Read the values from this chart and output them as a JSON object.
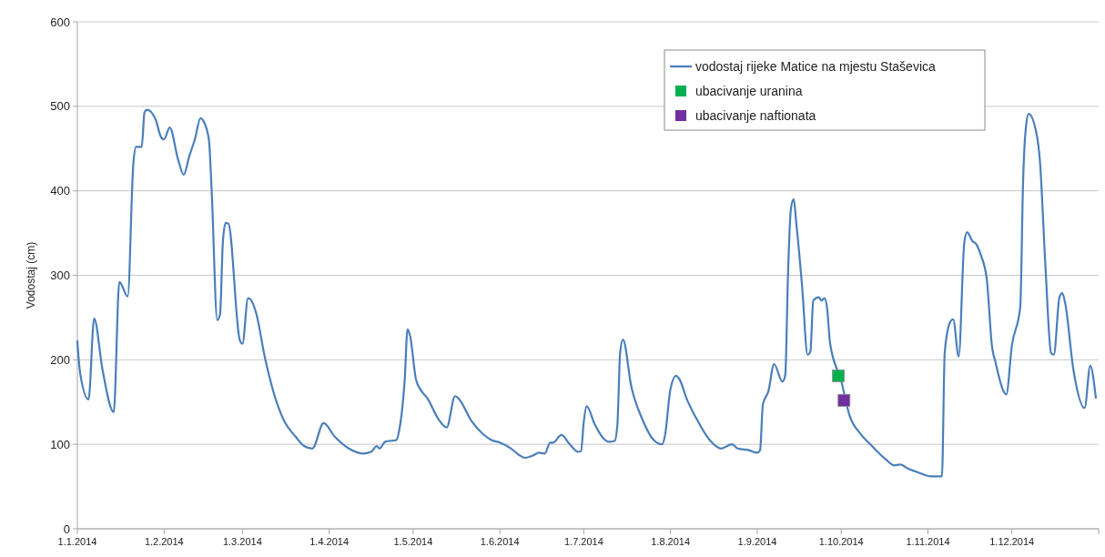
{
  "chart_data": {
    "type": "line",
    "ylabel": "Vodostaj (cm)",
    "xlim": [
      "2014-01-01",
      "2015-01-01"
    ],
    "xticks": [
      {
        "value": "2014-01-01",
        "label": "1.1.2014"
      },
      {
        "value": "2014-02-01",
        "label": "1.2.2014"
      },
      {
        "value": "2014-03-01",
        "label": "1.3.2014"
      },
      {
        "value": "2014-04-01",
        "label": "1.4.2014"
      },
      {
        "value": "2014-05-01",
        "label": "1.5.2014"
      },
      {
        "value": "2014-06-01",
        "label": "1.6.2014"
      },
      {
        "value": "2014-07-01",
        "label": "1.7.2014"
      },
      {
        "value": "2014-08-01",
        "label": "1.8.2014"
      },
      {
        "value": "2014-09-01",
        "label": "1.9.2014"
      },
      {
        "value": "2014-10-01",
        "label": "1.10.2014"
      },
      {
        "value": "2014-11-01",
        "label": "1.11.2014"
      },
      {
        "value": "2014-12-01",
        "label": "1.12.2014"
      },
      {
        "value": "2015-01-01",
        "label": null
      }
    ],
    "ylim": [
      0,
      600
    ],
    "yticks": [
      0,
      100,
      200,
      300,
      400,
      500,
      600
    ],
    "grid": "y",
    "legend": "top right",
    "series": [
      {
        "name": "vodostaj rijeke Matice na mjestu Staševica",
        "color": "#4a7ebb",
        "marker": "none",
        "line_style": "solid",
        "x": [
          "2014-01-01",
          "2014-01-02",
          "2014-01-05",
          "2014-01-07",
          "2014-01-10",
          "2014-01-14",
          "2014-01-16",
          "2014-01-19",
          "2014-01-21",
          "2014-01-22",
          "2014-01-24",
          "2014-01-25",
          "2014-01-26",
          "2014-01-29",
          "2014-01-31",
          "2014-02-01",
          "2014-02-03",
          "2014-02-06",
          "2014-02-08",
          "2014-02-10",
          "2014-02-12",
          "2014-02-14",
          "2014-02-15",
          "2014-02-17",
          "2014-02-18",
          "2014-02-20",
          "2014-02-21",
          "2014-02-22",
          "2014-02-23",
          "2014-02-24",
          "2014-02-28",
          "2014-03-01",
          "2014-03-03",
          "2014-03-04",
          "2014-03-06",
          "2014-03-09",
          "2014-03-12",
          "2014-03-16",
          "2014-03-20",
          "2014-03-23",
          "2014-03-26",
          "2014-03-30",
          "2014-04-03",
          "2014-04-08",
          "2014-04-13",
          "2014-04-16",
          "2014-04-18",
          "2014-04-19",
          "2014-04-21",
          "2014-04-25",
          "2014-04-26",
          "2014-04-28",
          "2014-04-29",
          "2014-04-30",
          "2014-05-02",
          "2014-05-04",
          "2014-05-06",
          "2014-05-10",
          "2014-05-13",
          "2014-05-16",
          "2014-05-17",
          "2014-05-22",
          "2014-05-26",
          "2014-05-29",
          "2014-06-01",
          "2014-06-05",
          "2014-06-08",
          "2014-06-10",
          "2014-06-13",
          "2014-06-15",
          "2014-06-17",
          "2014-06-19",
          "2014-06-20",
          "2014-06-23",
          "2014-06-26",
          "2014-06-29",
          "2014-06-30",
          "2014-07-01",
          "2014-07-02",
          "2014-07-05",
          "2014-07-08",
          "2014-07-10",
          "2014-07-12",
          "2014-07-13",
          "2014-07-14",
          "2014-07-15",
          "2014-07-18",
          "2014-07-22",
          "2014-07-26",
          "2014-07-29",
          "2014-07-30",
          "2014-08-01",
          "2014-08-03",
          "2014-08-04",
          "2014-08-07",
          "2014-08-10",
          "2014-08-15",
          "2014-08-19",
          "2014-08-23",
          "2014-08-25",
          "2014-08-29",
          "2014-09-01",
          "2014-09-02",
          "2014-09-03",
          "2014-09-05",
          "2014-09-07",
          "2014-09-10",
          "2014-09-11",
          "2014-09-12",
          "2014-09-13",
          "2014-09-14",
          "2014-09-15",
          "2014-09-17",
          "2014-09-19",
          "2014-09-20",
          "2014-09-21",
          "2014-09-23",
          "2014-09-24",
          "2014-09-25",
          "2014-09-26",
          "2014-09-27",
          "2014-10-01",
          "2014-10-04",
          "2014-10-08",
          "2014-10-12",
          "2014-10-14",
          "2014-10-17",
          "2014-10-20",
          "2014-10-22",
          "2014-10-25",
          "2014-10-29",
          "2014-11-02",
          "2014-11-06",
          "2014-11-07",
          "2014-11-09",
          "2014-11-10",
          "2014-11-12",
          "2014-11-14",
          "2014-11-15",
          "2014-11-17",
          "2014-11-18",
          "2014-11-20",
          "2014-11-22",
          "2014-11-24",
          "2014-11-25",
          "2014-11-28",
          "2014-11-29",
          "2014-12-01",
          "2014-12-04",
          "2014-12-05",
          "2014-12-06",
          "2014-12-07",
          "2014-12-10",
          "2014-12-11",
          "2014-12-13",
          "2014-12-15",
          "2014-12-16",
          "2014-12-18",
          "2014-12-19",
          "2014-12-20",
          "2014-12-23",
          "2014-12-27",
          "2014-12-29",
          "2014-12-31"
        ],
        "values": [
          222,
          184,
          153,
          249,
          188,
          138,
          292,
          275,
          432,
          452,
          452,
          493,
          496,
          484,
          463,
          461,
          475,
          437,
          419,
          441,
          461,
          486,
          483,
          461,
          400,
          247,
          254,
          339,
          362,
          361,
          224,
          219,
          273,
          271,
          254,
          203,
          163,
          127,
          109,
          98,
          95,
          125,
          109,
          95,
          89,
          91,
          98,
          95,
          103,
          105,
          116,
          177,
          236,
          227,
          177,
          163,
          155,
          130,
          120,
          157,
          155,
          127,
          112,
          105,
          102,
          95,
          87,
          84,
          87,
          90,
          89,
          102,
          102,
          111,
          100,
          91,
          92,
          127,
          145,
          123,
          107,
          103,
          104,
          123,
          209,
          224,
          168,
          129,
          105,
          100,
          110,
          166,
          181,
          178,
          152,
          132,
          105,
          95,
          100,
          95,
          93,
          90,
          93,
          147,
          163,
          195,
          174,
          182,
          303,
          378,
          390,
          360,
          288,
          206,
          210,
          270,
          274,
          270,
          273,
          260,
          220,
          175,
          134,
          112,
          98,
          91,
          82,
          75,
          76,
          71,
          66,
          62,
          62,
          209,
          245,
          248,
          204,
          339,
          351,
          340,
          338,
          323,
          296,
          213,
          199,
          163,
          159,
          217,
          263,
          411,
          475,
          491,
          464,
          436,
          310,
          208,
          206,
          274,
          279,
          268,
          188,
          143,
          193,
          155
        ]
      },
      {
        "name": "ubacivanje uranina",
        "type": "scatter",
        "color": "#00b050",
        "marker": "square",
        "x": [
          "2014-09-30"
        ],
        "values": [
          181
        ]
      },
      {
        "name": "ubacivanje naftionata",
        "type": "scatter",
        "color": "#7030a0",
        "marker": "square",
        "x": [
          "2014-10-02"
        ],
        "values": [
          152
        ]
      }
    ]
  }
}
